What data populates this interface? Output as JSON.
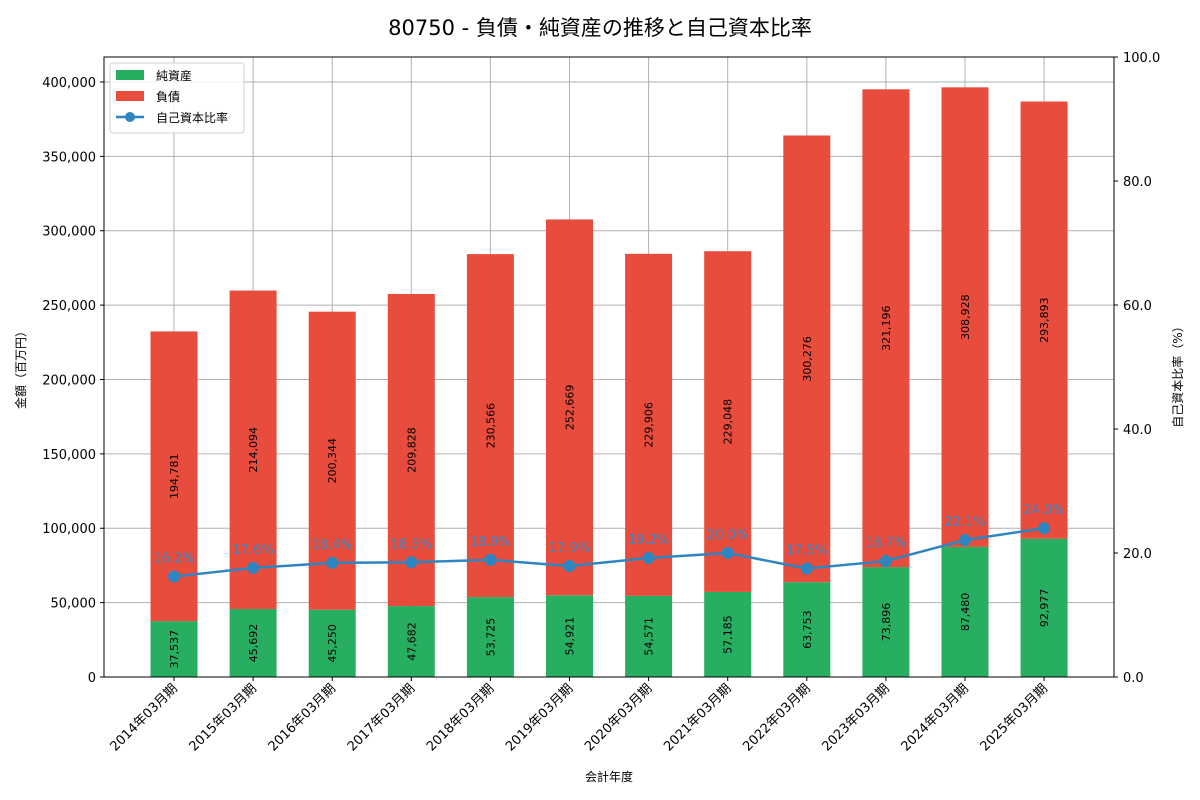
{
  "title": "80750 - 負債・純資産の推移と自己資本比率",
  "colors": {
    "net_assets": "#27ae60",
    "liabilities": "#e74c3c",
    "equity_ratio": "#2e86c1",
    "grid": "#b0b0b0"
  },
  "chart_data": {
    "type": "bar",
    "stacked": true,
    "title": "80750 - 負債・純資産の推移と自己資本比率",
    "xlabel": "会計年度",
    "ylabel": "金額（百万円）",
    "y2label": "自己資本比率（%）",
    "ylim": [
      0,
      416800
    ],
    "y2lim": [
      0,
      100
    ],
    "yticks": [
      "0",
      "50,000",
      "100,000",
      "150,000",
      "200,000",
      "250,000",
      "300,000",
      "350,000",
      "400,000"
    ],
    "y2ticks": [
      "0.0",
      "20.0",
      "40.0",
      "60.0",
      "80.0",
      "100.0"
    ],
    "grid": true,
    "legend_position": "upper left",
    "legend": [
      "純資産",
      "負債",
      "自己資本比率"
    ],
    "categories": [
      "2014年03月期",
      "2015年03月期",
      "2016年03月期",
      "2017年03月期",
      "2018年03月期",
      "2019年03月期",
      "2020年03月期",
      "2021年03月期",
      "2022年03月期",
      "2023年03月期",
      "2024年03月期",
      "2025年03月期"
    ],
    "series": [
      {
        "name": "純資産",
        "type": "bar",
        "values": [
          37537,
          45692,
          45250,
          47682,
          53725,
          54921,
          54571,
          57185,
          63753,
          73896,
          87480,
          92977
        ],
        "labels": [
          "37,537",
          "45,692",
          "45,250",
          "47,682",
          "53,725",
          "54,921",
          "54,571",
          "57,185",
          "63,753",
          "73,896",
          "87,480",
          "92,977"
        ]
      },
      {
        "name": "負債",
        "type": "bar",
        "values": [
          194781,
          214094,
          200344,
          209828,
          230566,
          252669,
          229906,
          229048,
          300276,
          321196,
          308928,
          293893
        ],
        "labels": [
          "194,781",
          "214,094",
          "200,344",
          "209,828",
          "230,566",
          "252,669",
          "229,906",
          "229,048",
          "300,276",
          "321,196",
          "308,928",
          "293,893"
        ]
      },
      {
        "name": "自己資本比率",
        "type": "line",
        "axis": "right",
        "values": [
          16.2,
          17.6,
          18.4,
          18.5,
          18.9,
          17.9,
          19.2,
          20.0,
          17.5,
          18.7,
          22.1,
          24.0
        ],
        "labels": [
          "16.2%",
          "17.6%",
          "18.4%",
          "18.5%",
          "18.9%",
          "17.9%",
          "19.2%",
          "20.0%",
          "17.5%",
          "18.7%",
          "22.1%",
          "24.0%"
        ]
      }
    ]
  }
}
